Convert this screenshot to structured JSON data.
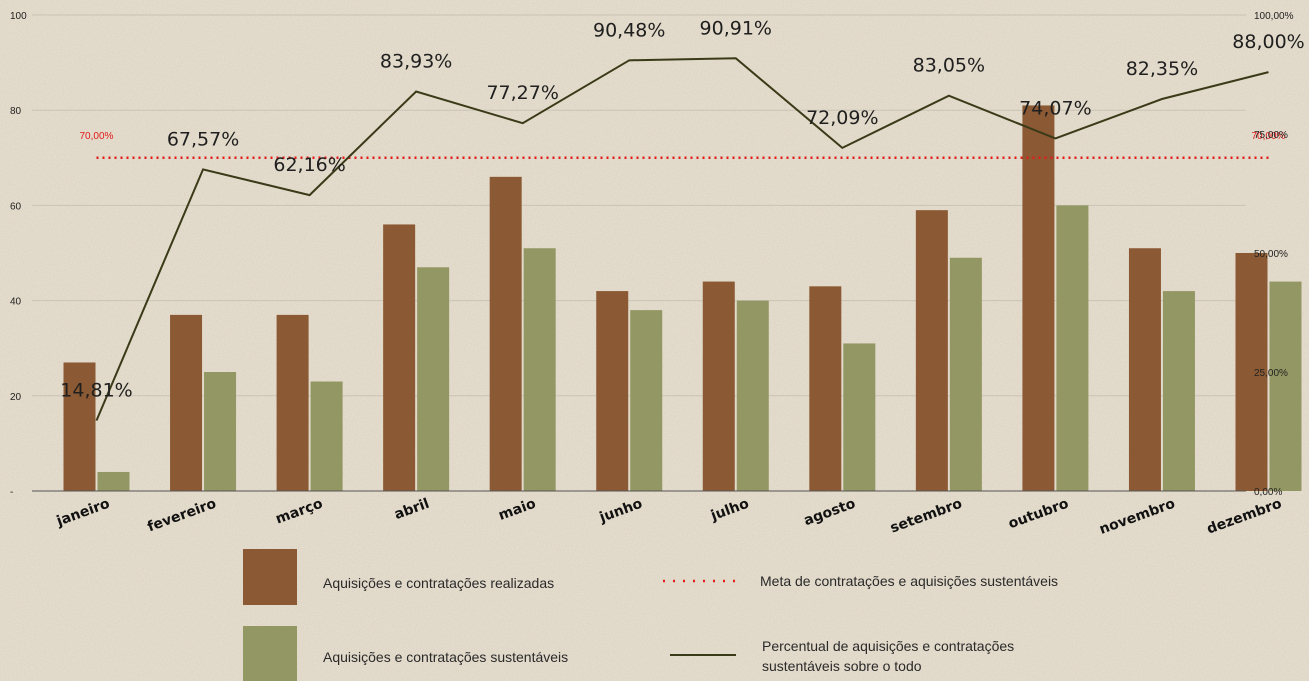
{
  "chart_data": {
    "type": "bar",
    "categories": [
      "janeiro",
      "fevereiro",
      "março",
      "abril",
      "maio",
      "junho",
      "julho",
      "agosto",
      "setembro",
      "outubro",
      "novembro",
      "dezembro"
    ],
    "series": [
      {
        "name": "Aquisições e contratações realizadas",
        "type": "bar",
        "axis": "left",
        "color": "#8b5a34",
        "values": [
          27,
          37,
          37,
          56,
          66,
          42,
          44,
          43,
          59,
          81,
          51,
          50
        ]
      },
      {
        "name": "Aquisições e contratações sustentáveis",
        "type": "bar",
        "axis": "left",
        "color": "#939763",
        "values": [
          4,
          25,
          23,
          47,
          51,
          38,
          40,
          31,
          49,
          60,
          42,
          44
        ]
      },
      {
        "name": "Percentual de aquisições e contratações sustentáveis sobre o todo",
        "type": "line",
        "axis": "right",
        "color": "#3a3a18",
        "values": [
          14.81,
          67.57,
          62.16,
          83.93,
          77.27,
          90.48,
          90.91,
          72.09,
          83.05,
          74.07,
          82.35,
          88.0
        ],
        "labels": [
          "14,81%",
          "67,57%",
          "62,16%",
          "83,93%",
          "77,27%",
          "90,48%",
          "90,91%",
          "72,09%",
          "83,05%",
          "74,07%",
          "82,35%",
          "88,00%"
        ]
      },
      {
        "name": "Meta de contratações e aquisições sustentáveis",
        "type": "line",
        "style": "dotted",
        "axis": "right",
        "color": "#e31b1b",
        "value": 70,
        "labels": [
          "70,00%",
          "70,00%"
        ]
      }
    ],
    "y_left": {
      "ylim": [
        0,
        100
      ],
      "ticks": [
        "-",
        "20",
        "40",
        "60",
        "80",
        "100"
      ],
      "tick_values": [
        0,
        20,
        40,
        60,
        80,
        100
      ]
    },
    "y_right": {
      "ylim": [
        0,
        100
      ],
      "ticks": [
        "0,00%",
        "25,00%",
        "50,00%",
        "75,00%",
        "100,00%"
      ],
      "tick_values": [
        0,
        25,
        50,
        75,
        100
      ]
    },
    "grid": true,
    "legend_position": "bottom",
    "legend": [
      {
        "label": "Aquisições e contratações realizadas",
        "kind": "bar",
        "color": "#8b5a34"
      },
      {
        "label": "Meta de contratações e aquisições sustentáveis",
        "kind": "dotted",
        "color": "#e31b1b"
      },
      {
        "label": "Aquisições e contratações sustentáveis",
        "kind": "bar",
        "color": "#939763"
      },
      {
        "label": "Percentual de aquisições e contratações sustentáveis sobre o todo",
        "kind": "line",
        "color": "#3a3a18"
      }
    ]
  }
}
